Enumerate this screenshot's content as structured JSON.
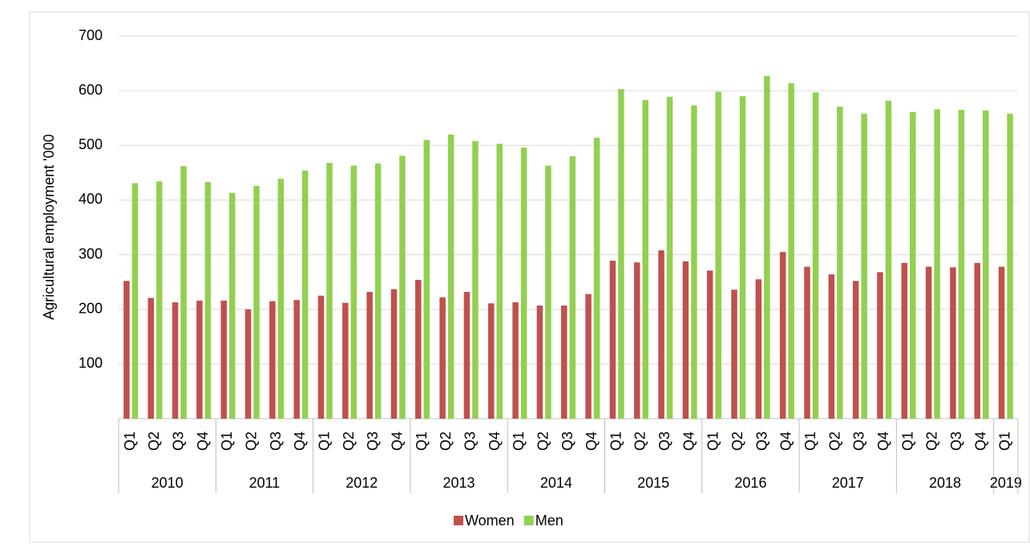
{
  "chart_data": {
    "type": "bar",
    "y_label": "Agricultural employment '000",
    "categories": [
      "Q1",
      "Q2",
      "Q3",
      "Q4",
      "Q1",
      "Q2",
      "Q3",
      "Q4",
      "Q1",
      "Q2",
      "Q3",
      "Q4",
      "Q1",
      "Q2",
      "Q3",
      "Q4",
      "Q1",
      "Q2",
      "Q3",
      "Q4",
      "Q1",
      "Q2",
      "Q3",
      "Q4",
      "Q1",
      "Q2",
      "Q3",
      "Q4",
      "Q1",
      "Q2",
      "Q3",
      "Q4",
      "Q1",
      "Q2",
      "Q3",
      "Q4",
      "Q1"
    ],
    "year_groups": [
      "2010",
      null,
      null,
      null,
      "2011",
      null,
      null,
      null,
      "2012",
      null,
      null,
      null,
      "2013",
      null,
      null,
      null,
      "2014",
      null,
      null,
      null,
      "2015",
      null,
      null,
      null,
      "2016",
      null,
      null,
      null,
      "2017",
      null,
      null,
      null,
      "2018",
      null,
      null,
      null,
      "2019"
    ],
    "series": [
      {
        "name": "Women",
        "color": "#c0504d",
        "values": [
          252,
          221,
          213,
          216,
          216,
          200,
          215,
          217,
          225,
          212,
          232,
          237,
          254,
          222,
          232,
          211,
          213,
          207,
          207,
          228,
          289,
          286,
          308,
          288,
          271,
          236,
          255,
          305,
          278,
          264,
          252,
          268,
          285,
          278,
          277,
          285,
          278
        ]
      },
      {
        "name": "Men",
        "color": "#92d050",
        "values": [
          431,
          434,
          462,
          433,
          413,
          426,
          439,
          454,
          468,
          463,
          467,
          481,
          510,
          520,
          508,
          503,
          496,
          463,
          480,
          514,
          603,
          583,
          589,
          573,
          598,
          590,
          627,
          614,
          597,
          571,
          558,
          582,
          561,
          566,
          565,
          564,
          558
        ]
      }
    ],
    "ylim": [
      0,
      700
    ],
    "yticks": [
      100,
      200,
      300,
      400,
      500,
      600,
      700
    ],
    "grid": true,
    "legend": "bottom"
  }
}
